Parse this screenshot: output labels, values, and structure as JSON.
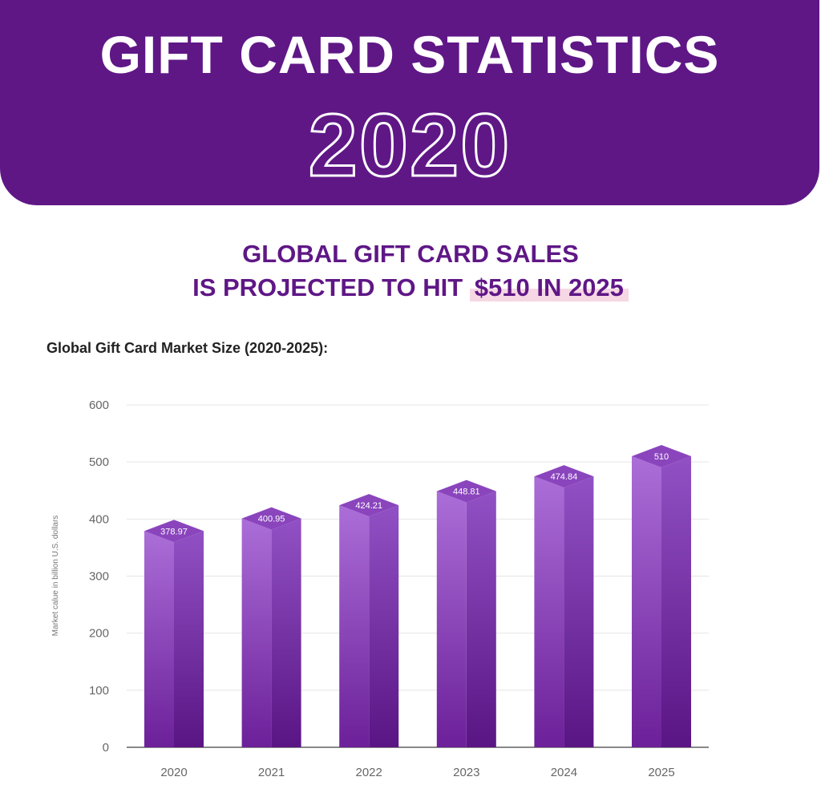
{
  "header": {
    "title": "GIFT CARD STATISTICS",
    "year": "2020"
  },
  "subtitle": {
    "line1": "GLOBAL GIFT CARD SALES",
    "line2_prefix": "IS PROJECTED TO HIT ",
    "line2_highlight": "$510 IN 2025"
  },
  "colors": {
    "brand": "#5f1786",
    "bar_light": "#a96ad6",
    "bar_dark": "#6a1f9a",
    "highlight": "#f6d7e4"
  },
  "chart_data": {
    "type": "bar",
    "title": "Global Gift Card Market Size (2020-2025):",
    "categories": [
      "2020",
      "2021",
      "2022",
      "2023",
      "2024",
      "2025"
    ],
    "values": [
      378.97,
      400.95,
      424.21,
      448.81,
      474.84,
      510
    ],
    "value_labels": [
      "378.97",
      "400.95",
      "424.21",
      "448.81",
      "474.84",
      "510"
    ],
    "xlabel": "",
    "ylabel": "Market calue in billion U.S. dollars",
    "ylim": [
      0,
      600
    ],
    "yticks": [
      "0",
      "100",
      "200",
      "300",
      "400",
      "500",
      "600"
    ],
    "grid": true
  }
}
